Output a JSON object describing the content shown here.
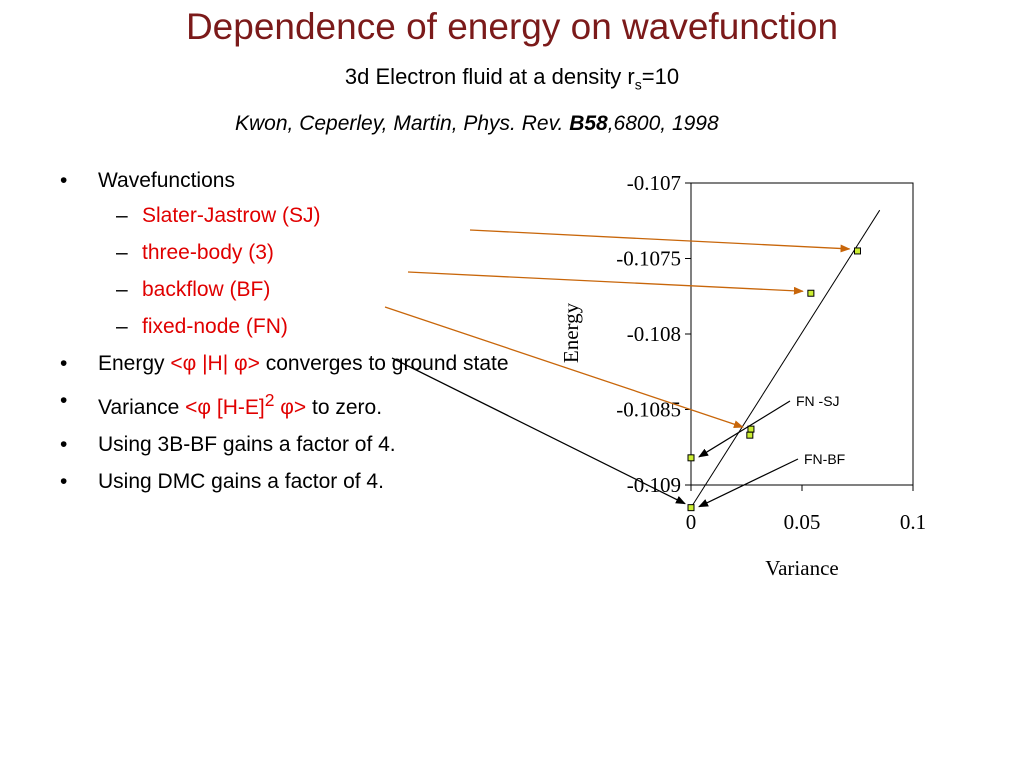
{
  "title": "Dependence of energy on wavefunction",
  "subtitle": {
    "prefix": "3d Electron fluid at a density r",
    "sub": "s",
    "suffix": "=10"
  },
  "citation": {
    "authors": "Kwon, Ceperley, Martin, Phys. Rev. ",
    "volume": "B58",
    "rest": ",6800, 1998"
  },
  "bullets": {
    "wavefunctions": "Wavefunctions",
    "sub_items": [
      "Slater-Jastrow (SJ)",
      "three-body (3)",
      "backflow (BF)",
      "fixed-node (FN)"
    ],
    "energy": {
      "prefix": "Energy ",
      "formula": "<φ |H| φ>",
      "suffix": " converges to ground state"
    },
    "variance": {
      "prefix": "Variance ",
      "formula_a": "<φ [H-E]",
      "sup": "2",
      "formula_b": " φ>",
      "suffix": " to zero."
    },
    "gain_3bbf": "Using 3B-BF gains a factor of 4.",
    "gain_dmc": "Using DMC gains a factor of 4."
  },
  "chart_data": {
    "type": "scatter",
    "xlabel": "Variance",
    "ylabel": "Energy",
    "xlim": [
      0,
      0.1
    ],
    "ylim": [
      -0.109,
      -0.107
    ],
    "xticks": [
      "0",
      "0.05",
      "0.1"
    ],
    "yticks": [
      "-0.107",
      "-0.1075",
      "-0.108",
      "-0.1085",
      "-0.109"
    ],
    "xtick_values": [
      0,
      0.05,
      0.1
    ],
    "ytick_values": [
      -0.107,
      -0.1075,
      -0.108,
      -0.1085,
      -0.109
    ],
    "points": [
      {
        "x": 0.075,
        "y": -0.10745
      },
      {
        "x": 0.054,
        "y": -0.10773
      },
      {
        "x": 0.027,
        "y": -0.10863
      },
      {
        "x": 0.0265,
        "y": -0.10867
      },
      {
        "x": 0.0,
        "y": -0.10882
      },
      {
        "x": 0.0,
        "y": -0.10915
      }
    ],
    "fit_line": {
      "x": [
        0,
        0.085
      ],
      "y": [
        -0.10915,
        -0.10718
      ]
    },
    "annotations": [
      {
        "text": "FN -SJ",
        "x": 0.0,
        "y": -0.10882
      },
      {
        "text": "FN-BF",
        "x": 0.0,
        "y": -0.10915
      }
    ],
    "marker_color": "#ccee33",
    "arrow_color": "#c8660a",
    "grid": false
  }
}
